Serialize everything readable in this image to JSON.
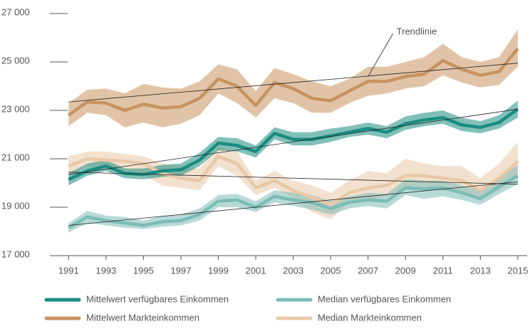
{
  "chart_data": {
    "type": "line",
    "x": [
      1991,
      1992,
      1993,
      1994,
      1995,
      1996,
      1997,
      1998,
      1999,
      2000,
      2001,
      2002,
      2003,
      2004,
      2005,
      2006,
      2007,
      2008,
      2009,
      2010,
      2011,
      2012,
      2013,
      2014,
      2015
    ],
    "xlim": [
      1990,
      2015.5
    ],
    "xticks": [
      1991,
      1993,
      1995,
      1997,
      1999,
      2001,
      2003,
      2005,
      2007,
      2009,
      2011,
      2013,
      2015
    ],
    "ylim": [
      17000,
      27000
    ],
    "yticks": [
      {
        "value": 17000,
        "label": "17 000"
      },
      {
        "value": 19000,
        "label": "19 000"
      },
      {
        "value": 21000,
        "label": "21 000"
      },
      {
        "value": 23000,
        "label": "23 000"
      },
      {
        "value": 25000,
        "label": "25 000"
      },
      {
        "value": 27000,
        "label": "27 000"
      }
    ],
    "series": [
      {
        "name": "Mittelwert verfügbares Einkommen",
        "color": "#1a8c80",
        "values": [
          20150,
          20500,
          20700,
          20400,
          20350,
          20500,
          20550,
          20950,
          21650,
          21550,
          21300,
          22050,
          21800,
          21800,
          21950,
          22100,
          22250,
          22100,
          22450,
          22600,
          22700,
          22400,
          22300,
          22500,
          23050
        ],
        "lower": [
          19900,
          20300,
          20500,
          20200,
          20150,
          20250,
          20300,
          20700,
          21350,
          21300,
          21050,
          21800,
          21550,
          21550,
          21700,
          21900,
          22000,
          21850,
          22200,
          22350,
          22450,
          22150,
          22050,
          22250,
          22700
        ],
        "upper": [
          20400,
          20800,
          20950,
          20600,
          20600,
          20750,
          20800,
          21250,
          21900,
          21850,
          21550,
          22300,
          22100,
          22100,
          22250,
          22350,
          22500,
          22350,
          22750,
          22900,
          23000,
          22700,
          22550,
          22800,
          23400
        ]
      },
      {
        "name": "Median verfügbares Einkommen",
        "color": "#7bbcb6",
        "values": [
          18150,
          18600,
          18450,
          18350,
          18250,
          18400,
          18450,
          18700,
          19250,
          19300,
          19000,
          19450,
          19300,
          19200,
          18950,
          19200,
          19300,
          19250,
          19800,
          19750,
          19800,
          19600,
          19350,
          19850,
          20300
        ],
        "lower": [
          17950,
          18350,
          18250,
          18150,
          18100,
          18200,
          18250,
          18450,
          19000,
          19000,
          18800,
          19200,
          19050,
          18900,
          18700,
          18950,
          19050,
          18950,
          19500,
          19350,
          19450,
          19300,
          19100,
          19550,
          19950
        ],
        "upper": [
          18350,
          18850,
          18650,
          18600,
          18450,
          18650,
          18700,
          18950,
          19500,
          19550,
          19250,
          19700,
          19600,
          19500,
          19250,
          19450,
          19600,
          19550,
          20150,
          20100,
          20100,
          19900,
          19700,
          20200,
          20750
        ]
      },
      {
        "name": "Mittelwert Markteinkommen",
        "color": "#c8935f",
        "values": [
          22800,
          23350,
          23300,
          23000,
          23250,
          23100,
          23150,
          23500,
          24300,
          24000,
          23200,
          24150,
          23900,
          23500,
          23400,
          23800,
          24200,
          24200,
          24400,
          24500,
          25050,
          24700,
          24450,
          24600,
          25550
        ],
        "lower": [
          22350,
          22900,
          22800,
          22300,
          22500,
          22300,
          22450,
          22800,
          23700,
          23300,
          22700,
          23500,
          23300,
          22900,
          22900,
          23300,
          23600,
          23700,
          23900,
          24000,
          24450,
          24150,
          23950,
          24050,
          24800
        ],
        "upper": [
          23300,
          23850,
          23900,
          23700,
          24100,
          23950,
          23900,
          24200,
          24900,
          24700,
          23800,
          24750,
          24500,
          24200,
          24000,
          24300,
          24800,
          24800,
          25000,
          25200,
          25750,
          25200,
          25000,
          25200,
          26350
        ]
      },
      {
        "name": "Median Markteinkommen",
        "color": "#e8c8a6",
        "values": [
          20700,
          21000,
          20950,
          20900,
          20800,
          20400,
          20200,
          20100,
          21100,
          20800,
          19800,
          20100,
          19700,
          19400,
          19100,
          19600,
          19800,
          19900,
          20300,
          20300,
          20200,
          20100,
          19700,
          20200,
          20900
        ],
        "lower": [
          20300,
          20700,
          20600,
          20500,
          20350,
          19900,
          19800,
          19700,
          20700,
          20300,
          19500,
          19800,
          19400,
          18800,
          18500,
          19200,
          19300,
          19450,
          19800,
          19800,
          19700,
          19550,
          19300,
          19700,
          20300
        ],
        "upper": [
          21100,
          21300,
          21300,
          21200,
          21100,
          20800,
          20700,
          20600,
          21500,
          21300,
          20100,
          20500,
          20100,
          19900,
          19600,
          20100,
          20500,
          20400,
          21000,
          20800,
          20700,
          20700,
          20200,
          20800,
          21700
        ]
      }
    ],
    "trendlines": [
      {
        "x": [
          1991,
          2015
        ],
        "values": [
          20350,
          23050
        ]
      },
      {
        "x": [
          1991,
          2015
        ],
        "values": [
          18250,
          20050
        ]
      },
      {
        "x": [
          1991,
          2015
        ],
        "values": [
          23350,
          24950
        ]
      },
      {
        "x": [
          1991,
          2015
        ],
        "values": [
          20450,
          19950
        ]
      }
    ],
    "annotation": {
      "text": "Trendlinie",
      "x": 2007,
      "y": 24400
    }
  }
}
